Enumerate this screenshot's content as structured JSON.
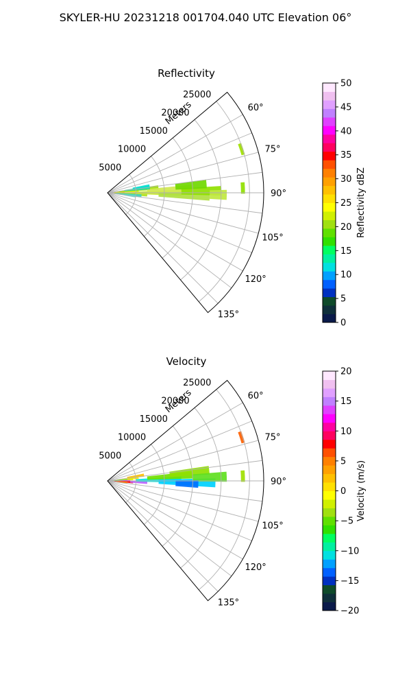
{
  "figure_title": "SKYLER-HU  20231218  001704.040 UTC Elevation 06°",
  "chart_data": [
    {
      "type": "heatmap",
      "subtype": "polar-sector-ppi",
      "title": "Reflectivity",
      "radial_axis_label": "Meters",
      "radial_ticks": [
        5000,
        10000,
        15000,
        20000,
        25000
      ],
      "radial_tick_labels": [
        "5000",
        "10000",
        "15000",
        "20000",
        "25000"
      ],
      "rlim": [
        0,
        27500
      ],
      "azimuth_ticks": [
        60,
        75,
        90,
        105,
        120,
        135
      ],
      "azimuth_tick_labels": [
        "60°",
        "75°",
        "90°",
        "105°",
        "120°",
        "135°"
      ],
      "azimuth_range": [
        50,
        140
      ],
      "grid": true,
      "colorbar": {
        "label": "Reflectivity dBZ",
        "range": [
          0,
          50
        ],
        "ticks": [
          0,
          5,
          10,
          15,
          20,
          25,
          30,
          35,
          40,
          45,
          50
        ],
        "tick_labels": [
          "0",
          "5",
          "10",
          "15",
          "20",
          "25",
          "30",
          "35",
          "40",
          "45",
          "50"
        ],
        "colors": [
          "#0a1a4a",
          "#0f2f3a",
          "#0f4a2a",
          "#0030c0",
          "#0060ff",
          "#00a0ff",
          "#00e0e0",
          "#00f0a0",
          "#00ff60",
          "#30e000",
          "#60e000",
          "#a0e010",
          "#d0f000",
          "#ffff00",
          "#ffe000",
          "#ffc000",
          "#ffa000",
          "#ff8000",
          "#ff5000",
          "#ff0000",
          "#ff0060",
          "#ff00a0",
          "#ff00ff",
          "#e040ff",
          "#c080ff",
          "#e0a0ff",
          "#f0c0f0",
          "#ffe8ff"
        ]
      },
      "echoes": [
        {
          "az": 89,
          "r": [
            0,
            3000
          ],
          "color": "#ff4020"
        },
        {
          "az": 88,
          "r": [
            800,
            2600
          ],
          "color": "#ffa000"
        },
        {
          "az": 91,
          "r": [
            0,
            5000
          ],
          "color": "#ffd000"
        },
        {
          "az": 86,
          "r": [
            1000,
            5500
          ],
          "color": "#e0f000"
        },
        {
          "az": 93,
          "r": [
            500,
            7000
          ],
          "color": "#b0e020"
        },
        {
          "az": 84,
          "r": [
            2000,
            9000
          ],
          "color": "#a0e000"
        },
        {
          "az": 90,
          "r": [
            5000,
            13000
          ],
          "color": "#c8e830"
        },
        {
          "az": 87,
          "r": [
            7000,
            15000
          ],
          "color": "#d0e850"
        },
        {
          "az": 92,
          "r": [
            9000,
            18000
          ],
          "color": "#b0e040"
        },
        {
          "az": 89,
          "r": [
            13000,
            20000
          ],
          "color": "#90e000"
        },
        {
          "az": 91,
          "r": [
            18000,
            21000
          ],
          "color": "#c0e840"
        },
        {
          "az": 83,
          "r": [
            3000,
            7500
          ],
          "color": "#30d8a0"
        },
        {
          "az": 95,
          "r": [
            1500,
            6000
          ],
          "color": "#40d0c0"
        },
        {
          "az": 81,
          "r": [
            4500,
            7500
          ],
          "color": "#00e0d0"
        },
        {
          "az": 97,
          "r": [
            3000,
            5000
          ],
          "color": "#50e0d0"
        },
        {
          "az": 85,
          "r": [
            12000,
            17500
          ],
          "color": "#70d800"
        },
        {
          "az": 72,
          "r": [
            24500,
            25100
          ],
          "color": "#a0e000"
        },
        {
          "az": 88,
          "r": [
            23500,
            24200
          ],
          "color": "#90e000"
        }
      ]
    },
    {
      "type": "heatmap",
      "subtype": "polar-sector-ppi",
      "title": "Velocity",
      "radial_axis_label": "Meters",
      "radial_ticks": [
        5000,
        10000,
        15000,
        20000,
        25000
      ],
      "radial_tick_labels": [
        "5000",
        "10000",
        "15000",
        "20000",
        "25000"
      ],
      "rlim": [
        0,
        27500
      ],
      "azimuth_ticks": [
        60,
        75,
        90,
        105,
        120,
        135
      ],
      "azimuth_tick_labels": [
        "60°",
        "75°",
        "90°",
        "105°",
        "120°",
        "135°"
      ],
      "azimuth_range": [
        50,
        140
      ],
      "grid": true,
      "colorbar": {
        "label": "Velocity (m/s)",
        "range": [
          -20,
          20
        ],
        "ticks": [
          -20,
          -15,
          -10,
          -5,
          0,
          5,
          10,
          15,
          20
        ],
        "tick_labels": [
          "−20",
          "−15",
          "−10",
          "−5",
          "0",
          "5",
          "10",
          "15",
          "20"
        ],
        "colors": [
          "#0a1a4a",
          "#0f2f3a",
          "#0f4a2a",
          "#0030c0",
          "#0060ff",
          "#00a0ff",
          "#00e0e0",
          "#00f0a0",
          "#00ff60",
          "#30e000",
          "#60e000",
          "#a0e010",
          "#d0f000",
          "#ffff00",
          "#ffe000",
          "#ffc000",
          "#ffa000",
          "#ff8000",
          "#ff5000",
          "#ff0000",
          "#ff0060",
          "#ff00a0",
          "#ff00ff",
          "#e040ff",
          "#c080ff",
          "#e0a0ff",
          "#f0c0f0",
          "#ffe8ff"
        ]
      },
      "echoes": [
        {
          "az": 84,
          "r": [
            2000,
            5500
          ],
          "color": "#ffe800"
        },
        {
          "az": 81,
          "r": [
            3500,
            6500
          ],
          "color": "#ffc000"
        },
        {
          "az": 86,
          "r": [
            500,
            4500
          ],
          "color": "#e0f000"
        },
        {
          "az": 88,
          "r": [
            0,
            3500
          ],
          "color": "#40e060"
        },
        {
          "az": 90,
          "r": [
            0,
            4000
          ],
          "color": "#ff00ff"
        },
        {
          "az": 91,
          "r": [
            0,
            2500
          ],
          "color": "#ff00a0"
        },
        {
          "az": 93,
          "r": [
            1000,
            4500
          ],
          "color": "#ff0000"
        },
        {
          "az": 95,
          "r": [
            1500,
            3500
          ],
          "color": "#ff8000"
        },
        {
          "az": 92,
          "r": [
            4000,
            7000
          ],
          "color": "#c060ff"
        },
        {
          "az": 89,
          "r": [
            5000,
            13000
          ],
          "color": "#00e8e0"
        },
        {
          "az": 91,
          "r": [
            9000,
            19000
          ],
          "color": "#00d0ff"
        },
        {
          "az": 86,
          "r": [
            7000,
            15000
          ],
          "color": "#70e000"
        },
        {
          "az": 84,
          "r": [
            11000,
            18000
          ],
          "color": "#90e000"
        },
        {
          "az": 88,
          "r": [
            15000,
            21000
          ],
          "color": "#60e020"
        },
        {
          "az": 92,
          "r": [
            12000,
            16000
          ],
          "color": "#0070ff"
        },
        {
          "az": 72,
          "r": [
            24500,
            25100
          ],
          "color": "#ff6000"
        },
        {
          "az": 88,
          "r": [
            23500,
            24200
          ],
          "color": "#a0e000"
        }
      ]
    }
  ]
}
